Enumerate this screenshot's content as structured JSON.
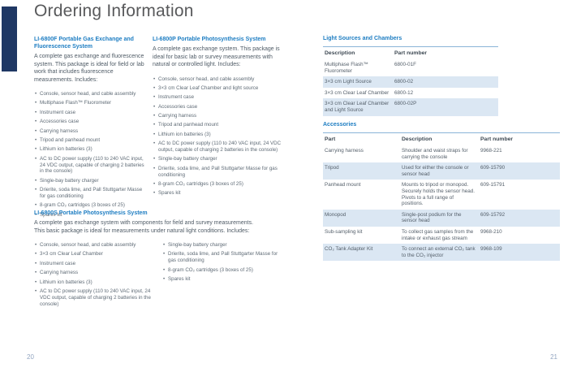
{
  "page": {
    "title": "Ordering Information",
    "left_page_number": "20",
    "right_page_number": "21"
  },
  "colors": {
    "accent_blue": "#1d7dc2",
    "navy_block": "#1f3864",
    "table_alt_row": "#dbe7f3",
    "title_gray": "#58595b"
  },
  "systems": {
    "f": {
      "heading": "LI-6800F Portable Gas Exchange and Fluorescence System",
      "intro": "A complete gas exchange and fluorescence system. This package is ideal for field or lab work that includes fluorescence measurements. Includes:",
      "bullets": [
        "Console, sensor head, and cable assembly",
        "Multiphase Flash™ Fluorometer",
        "Instrument case",
        "Accessories case",
        "Carrying harness",
        "Tripod and panhead mount",
        "Lithium ion batteries (3)",
        "AC to DC power supply (110 to 240 VAC input, 24 VDC output, capable of charging 2 batteries in the console)",
        "Single-bay battery charger",
        "Drierite, soda lime, and Pall Stuttgarter Masse for gas conditioning",
        "8-gram CO₂ cartridges (3 boxes of 25)",
        "Spares kit"
      ]
    },
    "p": {
      "heading": "LI-6800P Portable Photosynthesis System",
      "intro": "A complete gas exchange system. This package is ideal for basic lab or survey measurements with natural or controlled light. Includes:",
      "bullets": [
        "Console, sensor head, and cable assembly",
        "3×3 cm Clear Leaf Chamber and light source",
        "Instrument case",
        "Accessories case",
        "Carrying harness",
        "Tripod and panhead mount",
        "Lithium ion batteries (3)",
        "AC to DC power supply (110 to 240 VAC input, 24 VDC output, capable of charging 2 batteries in the console)",
        "Single-bay battery charger",
        "Drierite, soda lime, and Pall Stuttgarter Masse for gas conditioning",
        "8-gram CO₂ cartridges (3 boxes of 25)",
        "Spares kit"
      ]
    },
    "s": {
      "heading": "LI-6800S Portable Photosynthesis System",
      "intro": "A complete gas exchange system with components for field and survey measurements. This basic package is ideal for measurements under natural light conditions. Includes:",
      "bullets_left": [
        "Console, sensor head, and cable assembly",
        "3×3 cm Clear Leaf Chamber",
        "Instrument case",
        "Carrying harness",
        "Lithium ion batteries (3)",
        "AC to DC power supply (110 to 240 VAC input, 24 VDC output, capable of charging 2 batteries in the console)"
      ],
      "bullets_right": [
        "Single-bay battery charger",
        "Drierite, soda lime, and Pall Stuttgarter Masse for gas conditioning",
        "8-gram CO₂ cartridges (3 boxes of 25)",
        "Spares kit"
      ]
    }
  },
  "tables": {
    "light_sources": {
      "heading": "Light Sources and Chambers",
      "columns": [
        "Description",
        "Part number"
      ],
      "rows": [
        [
          "Multiphase Flash™ Fluorometer",
          "6800-01F"
        ],
        [
          "3×3 cm Light Source",
          "6800-02"
        ],
        [
          "3×3 cm Clear Leaf Chamber",
          "6800-12"
        ],
        [
          "3×3 cm Clear Leaf Chamber and Light Source",
          "6800-02P"
        ]
      ]
    },
    "accessories": {
      "heading": "Accessories",
      "columns": [
        "Part",
        "Description",
        "Part number"
      ],
      "rows": [
        [
          "Carrying harness",
          "Shoulder and waist straps for carrying the console",
          "9968-221"
        ],
        [
          "Tripod",
          "Used for either the console or sensor head",
          "609-15790"
        ],
        [
          "Panhead mount",
          "Mounts to tripod or monopod. Securely holds the sensor head. Pivots to a full range of positions.",
          "609-15791"
        ],
        [
          "Monopod",
          "Single-post podium for the sensor head",
          "609-15792"
        ],
        [
          "Sub-sampling kit",
          "To collect gas samples from the intake or exhaust gas stream",
          "9968-210"
        ],
        [
          "CO₂ Tank Adapter Kit",
          "To connect an external CO₂ tank to the CO₂ injector",
          "9968-109"
        ]
      ]
    }
  }
}
